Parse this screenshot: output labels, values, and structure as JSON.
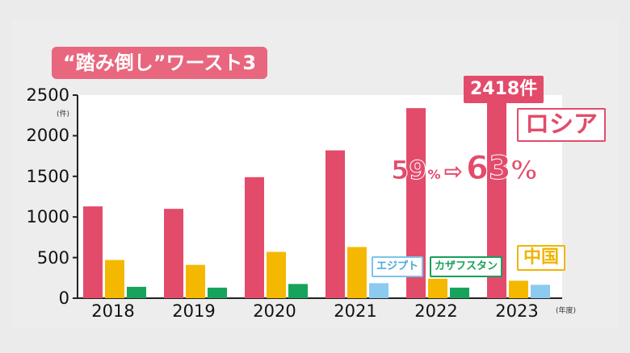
{
  "chart_data": {
    "type": "bar",
    "title": "“踏み倒し”ワースト3",
    "categories": [
      "2018",
      "2019",
      "2020",
      "2021",
      "2022",
      "2023"
    ],
    "x_unit": "(年度)",
    "y_unit": "(件)",
    "ylim": [
      0,
      2500
    ],
    "yticks": [
      0,
      500,
      1000,
      1500,
      2000,
      2500
    ],
    "series": [
      {
        "values": [
          1130,
          1100,
          1490,
          1820,
          2340,
          2418
        ],
        "color": "#e34b6b"
      },
      {
        "values": [
          470,
          410,
          570,
          630,
          240,
          215
        ],
        "color": "#f5b800"
      },
      {
        "values": [
          140,
          130,
          175,
          null,
          130,
          null
        ],
        "color": "#17a35c"
      },
      {
        "values": [
          null,
          null,
          null,
          185,
          null,
          165
        ],
        "color": "#8ccbee"
      }
    ],
    "annotations": {
      "total_2023": "2418件",
      "russia": "ロシア",
      "china": "中国",
      "egypt": "エジプト",
      "kazakhstan": "カザフスタン",
      "share_from": "59",
      "share_from_unit": "%",
      "share_arrow": "⇨",
      "share_to": "63",
      "share_to_unit": "%"
    },
    "grid": false,
    "legend": "none"
  }
}
